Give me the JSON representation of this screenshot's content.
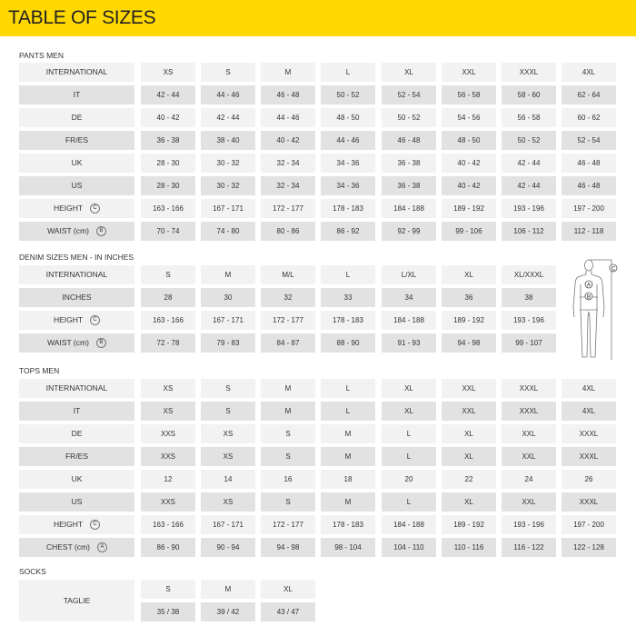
{
  "header": {
    "title": "TABLE OF SIZES",
    "accent_color": "#ffd800"
  },
  "sections": [
    {
      "title": "PANTS MEN",
      "rows": [
        {
          "label": "INTERNATIONAL",
          "values": [
            "XS",
            "S",
            "M",
            "L",
            "XL",
            "XXL",
            "XXXL",
            "4XL"
          ]
        },
        {
          "label": "IT",
          "values": [
            "42 - 44",
            "44 - 46",
            "46 - 48",
            "50 - 52",
            "52 - 54",
            "56 - 58",
            "58 - 60",
            "62 - 64"
          ]
        },
        {
          "label": "DE",
          "values": [
            "40 - 42",
            "42 - 44",
            "44 - 46",
            "48 - 50",
            "50 - 52",
            "54 - 56",
            "56 - 58",
            "60 - 62"
          ]
        },
        {
          "label": "FR/ES",
          "values": [
            "36 - 38",
            "38 - 40",
            "40 - 42",
            "44 - 46",
            "46 - 48",
            "48 - 50",
            "50 - 52",
            "52 - 54"
          ]
        },
        {
          "label": "UK",
          "values": [
            "28 - 30",
            "30 - 32",
            "32 - 34",
            "34 - 36",
            "36 - 38",
            "40 - 42",
            "42 - 44",
            "46 - 48"
          ]
        },
        {
          "label": "US",
          "values": [
            "28 - 30",
            "30 - 32",
            "32 - 34",
            "34 - 36",
            "36 - 38",
            "40 - 42",
            "42 - 44",
            "46 - 48"
          ]
        },
        {
          "label": "HEIGHT",
          "marker": "C",
          "values": [
            "163 - 166",
            "167 - 171",
            "172 - 177",
            "178 - 183",
            "184 - 188",
            "189 - 192",
            "193 - 196",
            "197 - 200"
          ]
        },
        {
          "label": "WAIST  (cm)",
          "marker": "B",
          "values": [
            "70 - 74",
            "74 - 80",
            "80 - 86",
            "86 - 92",
            "92 - 99",
            "99 - 106",
            "106 - 112",
            "112 - 118"
          ]
        }
      ]
    },
    {
      "title": "DENIM SIZES MEN - IN INCHES",
      "rows": [
        {
          "label": "INTERNATIONAL",
          "values": [
            "S",
            "M",
            "M/L",
            "L",
            "L/XL",
            "XL",
            "XL/XXXL"
          ]
        },
        {
          "label": "INCHES",
          "values": [
            "28",
            "30",
            "32",
            "33",
            "34",
            "36",
            "38"
          ]
        },
        {
          "label": "HEIGHT",
          "marker": "C",
          "values": [
            "163 - 166",
            "167 - 171",
            "172 - 177",
            "178 - 183",
            "184 - 188",
            "189 - 192",
            "193 - 196"
          ]
        },
        {
          "label": "WAIST  (cm)",
          "marker": "B",
          "values": [
            "72 - 78",
            "79 - 83",
            "84 - 87",
            "88 - 90",
            "91 - 93",
            "94 - 98",
            "99 - 107"
          ]
        }
      ]
    },
    {
      "title": "TOPS MEN",
      "rows": [
        {
          "label": "INTERNATIONAL",
          "values": [
            "XS",
            "S",
            "M",
            "L",
            "XL",
            "XXL",
            "XXXL",
            "4XL"
          ]
        },
        {
          "label": "IT",
          "values": [
            "XS",
            "S",
            "M",
            "L",
            "XL",
            "XXL",
            "XXXL",
            "4XL"
          ]
        },
        {
          "label": "DE",
          "values": [
            "XXS",
            "XS",
            "S",
            "M",
            "L",
            "XL",
            "XXL",
            "XXXL"
          ]
        },
        {
          "label": "FR/ES",
          "values": [
            "XXS",
            "XS",
            "S",
            "M",
            "L",
            "XL",
            "XXL",
            "XXXL"
          ]
        },
        {
          "label": "UK",
          "values": [
            "12",
            "14",
            "16",
            "18",
            "20",
            "22",
            "24",
            "26"
          ]
        },
        {
          "label": "US",
          "values": [
            "XXS",
            "XS",
            "S",
            "M",
            "L",
            "XL",
            "XXL",
            "XXXL"
          ]
        },
        {
          "label": "HEIGHT",
          "marker": "C",
          "values": [
            "163 - 166",
            "167 - 171",
            "172 - 177",
            "178 - 183",
            "184 - 188",
            "189 - 192",
            "193 - 196",
            "197 - 200"
          ]
        },
        {
          "label": "CHEST  (cm)",
          "marker": "A",
          "values": [
            "86 - 90",
            "90 - 94",
            "94 - 98",
            "98 - 104",
            "104 - 110",
            "110 - 116",
            "116 - 122",
            "122 - 128"
          ]
        }
      ]
    }
  ],
  "socks": {
    "title": "SOCKS",
    "label": "TAGLIE",
    "sizes": [
      "S",
      "M",
      "XL"
    ],
    "values": [
      "35 / 38",
      "39 / 42",
      "43 / 47"
    ]
  },
  "figure": {
    "markers": [
      "A",
      "B",
      "C"
    ]
  }
}
